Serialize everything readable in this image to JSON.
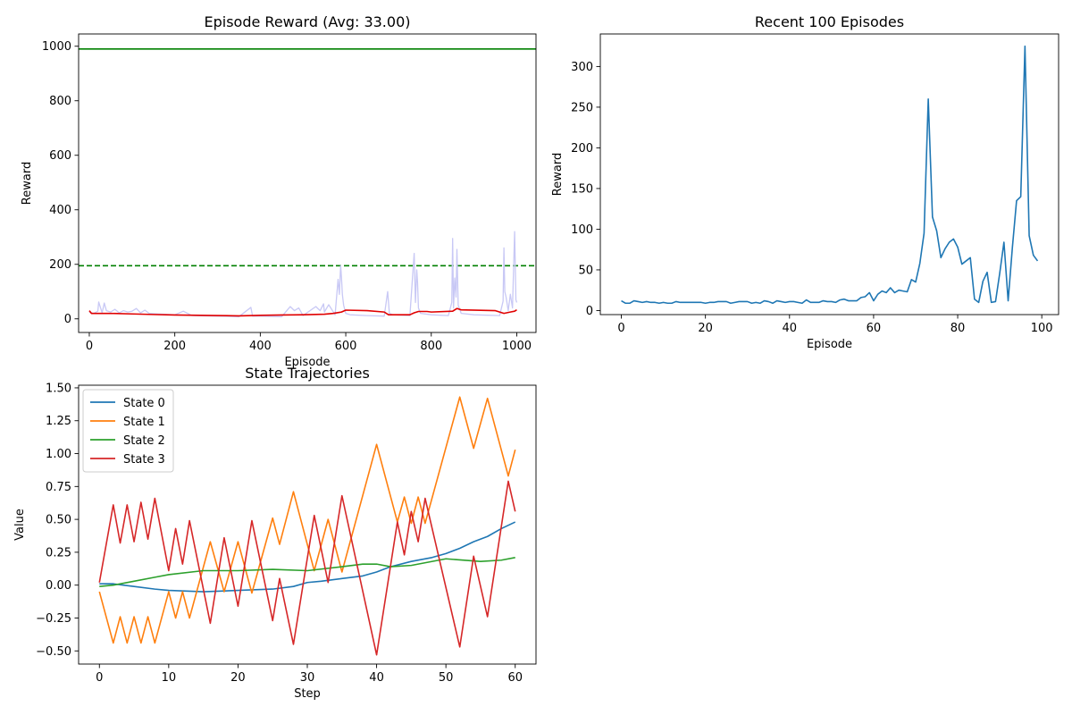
{
  "chart_data": [
    {
      "id": "reward",
      "type": "line",
      "title": "Episode Reward (Avg: 33.00)",
      "xlabel": "Episode",
      "ylabel": "Reward",
      "xlim": [
        -25,
        1045
      ],
      "ylim": [
        -50,
        1045
      ],
      "xticks": [
        0,
        200,
        400,
        600,
        800,
        1000
      ],
      "yticks": [
        0,
        200,
        400,
        600,
        800,
        1000
      ],
      "grid": false,
      "reference_lines": [
        {
          "value": 990,
          "color": "#008000",
          "style": "solid"
        },
        {
          "value": 195,
          "color": "#008000",
          "style": "dashed"
        }
      ],
      "series": [
        {
          "role": "raw",
          "color": "#c8c8f5",
          "x": [
            0,
            10,
            20,
            22,
            30,
            35,
            40,
            50,
            60,
            70,
            80,
            90,
            100,
            110,
            120,
            130,
            140,
            160,
            200,
            220,
            240,
            300,
            350,
            378,
            382,
            400,
            450,
            470,
            480,
            490,
            500,
            530,
            540,
            548,
            550,
            560,
            575,
            582,
            585,
            588,
            590,
            592,
            595,
            600,
            610,
            650,
            690,
            698,
            702,
            710,
            750,
            760,
            763,
            766,
            768,
            770,
            775,
            800,
            840,
            848,
            850,
            852,
            855,
            858,
            860,
            863,
            870,
            900,
            960,
            968,
            970,
            972,
            975,
            980,
            985,
            990,
            995,
            998,
            1000
          ],
          "y": [
            25,
            20,
            28,
            62,
            22,
            58,
            30,
            25,
            35,
            22,
            30,
            25,
            28,
            38,
            22,
            32,
            20,
            18,
            15,
            28,
            12,
            10,
            8,
            42,
            10,
            10,
            8,
            45,
            30,
            40,
            12,
            45,
            30,
            55,
            25,
            52,
            15,
            145,
            90,
            195,
            150,
            90,
            50,
            20,
            15,
            12,
            10,
            100,
            20,
            15,
            12,
            240,
            60,
            180,
            130,
            40,
            20,
            15,
            12,
            60,
            295,
            40,
            150,
            80,
            255,
            50,
            20,
            15,
            12,
            65,
            260,
            100,
            80,
            30,
            90,
            40,
            320,
            70,
            60
          ]
        },
        {
          "role": "moving-average",
          "color": "#e00000",
          "x": [
            0,
            5,
            50,
            100,
            150,
            200,
            300,
            350,
            400,
            450,
            500,
            550,
            570,
            590,
            600,
            650,
            690,
            700,
            750,
            760,
            770,
            790,
            800,
            850,
            860,
            870,
            950,
            970,
            985,
            995,
            1000
          ],
          "y": [
            30,
            20,
            20,
            18,
            16,
            14,
            12,
            11,
            13,
            14,
            15,
            17,
            20,
            25,
            32,
            30,
            25,
            15,
            15,
            22,
            27,
            27,
            25,
            28,
            38,
            33,
            30,
            20,
            25,
            28,
            33
          ]
        }
      ]
    },
    {
      "id": "recent",
      "type": "line",
      "title": "Recent 100 Episodes",
      "xlabel": "Episode",
      "ylabel": "Reward",
      "xlim": [
        -5,
        104
      ],
      "ylim": [
        -5,
        340
      ],
      "xticks": [
        0,
        20,
        40,
        60,
        80,
        100
      ],
      "yticks": [
        0,
        50,
        100,
        150,
        200,
        250,
        300
      ],
      "grid": false,
      "series": [
        {
          "color": "#1f77b4",
          "x": [
            0,
            1,
            2,
            3,
            4,
            5,
            6,
            7,
            8,
            9,
            10,
            11,
            12,
            13,
            14,
            15,
            16,
            17,
            18,
            19,
            20,
            21,
            22,
            23,
            24,
            25,
            26,
            27,
            28,
            29,
            30,
            31,
            32,
            33,
            34,
            35,
            36,
            37,
            38,
            39,
            40,
            41,
            42,
            43,
            44,
            45,
            46,
            47,
            48,
            49,
            50,
            51,
            52,
            53,
            54,
            55,
            56,
            57,
            58,
            59,
            60,
            61,
            62,
            63,
            64,
            65,
            66,
            67,
            68,
            69,
            70,
            71,
            72,
            73,
            74,
            75,
            76,
            77,
            78,
            79,
            80,
            81,
            82,
            83,
            84,
            85,
            86,
            87,
            88,
            89,
            90,
            91,
            92,
            93,
            94,
            95,
            96,
            97,
            98,
            99
          ],
          "y": [
            12,
            9,
            9,
            12,
            11,
            10,
            11,
            10,
            10,
            9,
            10,
            9,
            9,
            11,
            10,
            10,
            10,
            10,
            10,
            10,
            9,
            10,
            10,
            11,
            11,
            11,
            9,
            10,
            11,
            11,
            11,
            9,
            10,
            9,
            12,
            11,
            9,
            12,
            11,
            10,
            11,
            11,
            10,
            9,
            13,
            10,
            10,
            10,
            12,
            11,
            11,
            10,
            13,
            14,
            12,
            12,
            12,
            16,
            17,
            22,
            12,
            20,
            24,
            22,
            28,
            22,
            25,
            24,
            23,
            38,
            35,
            58,
            95,
            260,
            115,
            98,
            65,
            76,
            84,
            88,
            78,
            57,
            61,
            65,
            14,
            10,
            36,
            47,
            10,
            11,
            46,
            84,
            12,
            77,
            135,
            140,
            325,
            92,
            68,
            61
          ]
        }
      ]
    },
    {
      "id": "states",
      "type": "line",
      "title": "State Trajectories",
      "xlabel": "Step",
      "ylabel": "Value",
      "xlim": [
        -3,
        63
      ],
      "ylim": [
        -0.6,
        1.52
      ],
      "xticks": [
        0,
        10,
        20,
        30,
        40,
        50,
        60
      ],
      "yticks": [
        -0.5,
        -0.25,
        0.0,
        0.25,
        0.5,
        0.75,
        1.0,
        1.25,
        1.5
      ],
      "ytick_labels": [
        "−0.50",
        "−0.25",
        "0.00",
        "0.25",
        "0.50",
        "0.75",
        "1.00",
        "1.25",
        "1.50"
      ],
      "grid": false,
      "legend": "upper-left",
      "series": [
        {
          "name": "State 0",
          "color": "#1f77b4",
          "x": [
            0,
            2,
            5,
            8,
            10,
            15,
            20,
            25,
            28,
            30,
            32,
            35,
            38,
            40,
            42,
            45,
            48,
            50,
            52,
            54,
            56,
            58,
            60
          ],
          "y": [
            0.01,
            0.01,
            -0.01,
            -0.03,
            -0.04,
            -0.05,
            -0.04,
            -0.03,
            -0.01,
            0.02,
            0.03,
            0.05,
            0.07,
            0.1,
            0.14,
            0.18,
            0.21,
            0.24,
            0.28,
            0.33,
            0.37,
            0.43,
            0.48
          ]
        },
        {
          "name": "State 1",
          "color": "#ff7f0e",
          "x": [
            0,
            2,
            3,
            4,
            5,
            6,
            7,
            8,
            10,
            11,
            12,
            13,
            16,
            18,
            20,
            22,
            25,
            26,
            28,
            31,
            33,
            35,
            40,
            43,
            44,
            45,
            46,
            47,
            52,
            54,
            56,
            59,
            60
          ],
          "y": [
            -0.05,
            -0.44,
            -0.24,
            -0.44,
            -0.24,
            -0.44,
            -0.24,
            -0.44,
            -0.05,
            -0.25,
            -0.05,
            -0.25,
            0.33,
            -0.05,
            0.33,
            -0.06,
            0.51,
            0.31,
            0.71,
            0.11,
            0.5,
            0.1,
            1.07,
            0.48,
            0.67,
            0.47,
            0.67,
            0.47,
            1.43,
            1.04,
            1.42,
            0.83,
            1.03
          ]
        },
        {
          "name": "State 2",
          "color": "#2ca02c",
          "x": [
            0,
            2,
            5,
            8,
            10,
            15,
            20,
            25,
            30,
            35,
            38,
            40,
            42,
            45,
            50,
            55,
            58,
            60
          ],
          "y": [
            -0.01,
            0.0,
            0.03,
            0.06,
            0.08,
            0.11,
            0.11,
            0.12,
            0.11,
            0.14,
            0.16,
            0.16,
            0.14,
            0.15,
            0.2,
            0.18,
            0.19,
            0.21
          ]
        },
        {
          "name": "State 3",
          "color": "#d62728",
          "x": [
            0,
            2,
            3,
            4,
            5,
            6,
            7,
            8,
            10,
            11,
            12,
            13,
            16,
            18,
            20,
            22,
            25,
            26,
            28,
            31,
            33,
            35,
            40,
            43,
            44,
            45,
            46,
            47,
            52,
            54,
            56,
            59,
            60
          ],
          "y": [
            0.02,
            0.61,
            0.32,
            0.61,
            0.33,
            0.63,
            0.35,
            0.66,
            0.11,
            0.43,
            0.16,
            0.49,
            -0.29,
            0.36,
            -0.16,
            0.49,
            -0.27,
            0.05,
            -0.45,
            0.53,
            0.02,
            0.68,
            -0.53,
            0.48,
            0.23,
            0.56,
            0.33,
            0.66,
            -0.47,
            0.22,
            -0.24,
            0.79,
            0.56
          ]
        }
      ]
    }
  ]
}
